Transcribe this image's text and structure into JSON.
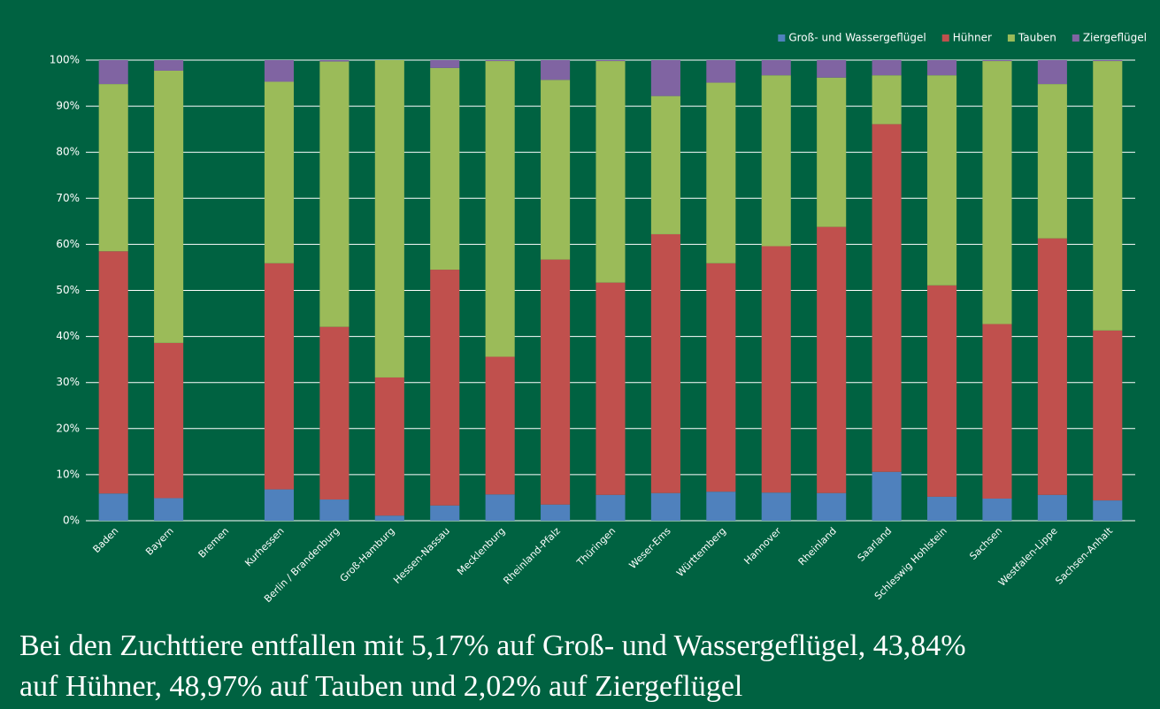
{
  "chart_data": {
    "type": "stacked_bar",
    "categories": [
      "Baden",
      "Bayern",
      "Bremen",
      "Kurhessen",
      "Berlin / Brandenburg",
      "Groß-Hamburg",
      "Hessen-Nassau",
      "Mecklenburg",
      "Rheinland-Pfalz",
      "Thüringen",
      "Weser-Ems",
      "Württemberg",
      "Hannover",
      "Rheinland",
      "Saarland",
      "Schleswig Hohlstein",
      "Sachsen",
      "Westfalen-Lippe",
      "Sachsen-Anhalt"
    ],
    "series": [
      {
        "name": "Groß- und Wassergeflügel",
        "color": "#4f81bd",
        "values": [
          5.9,
          4.9,
          null,
          6.8,
          4.6,
          1.1,
          3.3,
          5.7,
          3.5,
          5.6,
          6.0,
          6.3,
          6.1,
          6.0,
          10.6,
          5.2,
          4.8,
          5.6,
          4.4
        ]
      },
      {
        "name": "Hühner",
        "color": "#c0504d",
        "values": [
          52.6,
          33.7,
          null,
          49.1,
          37.5,
          30.0,
          51.2,
          29.9,
          53.2,
          46.1,
          56.2,
          49.6,
          53.5,
          57.8,
          75.5,
          45.9,
          37.9,
          55.7,
          36.9
        ]
      },
      {
        "name": "Tauben",
        "color": "#9bbb59",
        "values": [
          36.3,
          59.1,
          null,
          39.4,
          57.6,
          68.9,
          43.8,
          64.2,
          39.0,
          48.1,
          30.0,
          39.2,
          37.1,
          32.4,
          10.6,
          45.6,
          57.1,
          33.5,
          58.5
        ]
      },
      {
        "name": "Ziergeflügel",
        "color": "#8064a2",
        "values": [
          5.2,
          2.3,
          null,
          4.7,
          0.3,
          0.0,
          1.7,
          0.2,
          4.3,
          0.2,
          7.8,
          4.9,
          3.3,
          3.8,
          3.3,
          3.3,
          0.2,
          5.2,
          0.2
        ]
      }
    ],
    "ylim": [
      0,
      100
    ],
    "yticks": [
      {
        "value": 0,
        "label": "0%"
      },
      {
        "value": 10,
        "label": "10%"
      },
      {
        "value": 20,
        "label": "20%"
      },
      {
        "value": 30,
        "label": "30%"
      },
      {
        "value": 40,
        "label": "40%"
      },
      {
        "value": 50,
        "label": "50%"
      },
      {
        "value": 60,
        "label": "60%"
      },
      {
        "value": 70,
        "label": "70%"
      },
      {
        "value": 80,
        "label": "80%"
      },
      {
        "value": 90,
        "label": "90%"
      },
      {
        "value": 100,
        "label": "100%"
      }
    ],
    "grid": true,
    "legend": "top-right",
    "annotation": "Bei den Zuchttiere entfallen mit 5,17% auf Groß- und Wassergeflügel, 43,84% auf Hühner, 48,97% auf Tauben und 2,02% auf Ziergeflügel"
  }
}
